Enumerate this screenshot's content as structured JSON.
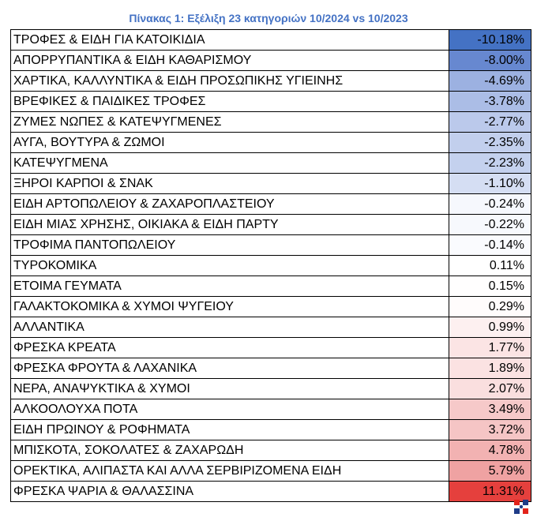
{
  "title": "Πίνακας 1: Εξέλιξη 23 κατηγοριών 10/2024 vs 10/2023",
  "rows": [
    {
      "category": "ΤΡΟΦΕΣ & ΕΙΔΗ ΓΙΑ ΚΑΤΟΙΚΙΔΙΑ",
      "change": "-10.18%",
      "color": "#4472c4"
    },
    {
      "category": "ΑΠΟΡΡΥΠΑΝΤΙΚΑ & ΕΙΔΗ ΚΑΘΑΡΙΣΜΟΥ",
      "change": "-8.00%",
      "color": "#6788d0"
    },
    {
      "category": "ΧΑΡΤΙΚΑ, ΚΑΛΛΥΝΤΙΚΑ & ΕΙΔΗ ΠΡΟΣΩΠΙΚΗΣ ΥΓΙΕΙΝΗΣ",
      "change": "-4.69%",
      "color": "#9cb1e1"
    },
    {
      "category": "ΒΡΕΦΙΚΕΣ & ΠΑΙΔΙΚΕΣ ΤΡΟΦΕΣ",
      "change": "-3.78%",
      "color": "#abbde6"
    },
    {
      "category": "ΖΥΜΕΣ ΝΩΠΕΣ & ΚΑΤΕΨΥΓΜΕΝΕΣ",
      "change": "-2.77%",
      "color": "#bbc9eb"
    },
    {
      "category": "ΑΥΓΑ, ΒΟΥΤΥΡΑ & ΖΩΜΟΙ",
      "change": "-2.35%",
      "color": "#c2cfed"
    },
    {
      "category": "ΚΑΤΕΨΥΓΜΕΝΑ",
      "change": "-2.23%",
      "color": "#c4d1ee"
    },
    {
      "category": "ΞΗΡΟΙ ΚΑΡΠΟΙ & ΣΝΑΚ",
      "change": "-1.10%",
      "color": "#d5def3"
    },
    {
      "category": "ΕΙΔΗ ΑΡΤΟΠΩΛΕΙΟΥ & ΖΑΧΑΡΟΠΛΑΣΤΕΙΟΥ",
      "change": "-0.24%",
      "color": "#f6f8fd"
    },
    {
      "category": "ΕΙΔΗ ΜΙΑΣ ΧΡΗΣΗΣ, ΟΙΚΙΑΚΑ & ΕΙΔΗ ΠΑΡΤΥ",
      "change": "-0.22%",
      "color": "#f7f9fd"
    },
    {
      "category": "ΤΡΟΦΙΜΑ ΠΑΝΤΟΠΩΛΕΙΟΥ",
      "change": "-0.14%",
      "color": "#fafbfe"
    },
    {
      "category": "ΤΥΡΟΚΟΜΙΚΑ",
      "change": "0.11%",
      "color": "#ffffff"
    },
    {
      "category": "ΕΤΟΙΜΑ ΓΕΥΜΑΤΑ",
      "change": "0.15%",
      "color": "#fffefe"
    },
    {
      "category": "ΓΑΛΑΚΤΟΚΟΜΙΚΑ & ΧΥΜΟΙ ΨΥΓΕΙΟΥ",
      "change": "0.29%",
      "color": "#fffcfc"
    },
    {
      "category": "ΑΛΛΑΝΤΙΚΑ",
      "change": "0.99%",
      "color": "#fdf0f0"
    },
    {
      "category": "ΦΡΕΣΚΑ ΚΡΕΑΤΑ",
      "change": "1.77%",
      "color": "#fbe4e4"
    },
    {
      "category": "ΦΡΕΣΚΑ ΦΡΟΥΤΑ & ΛΑΧΑΝΙΚΑ",
      "change": "1.89%",
      "color": "#fbe2e2"
    },
    {
      "category": "ΝΕΡΑ, ΑΝΑΨΥΚΤΙΚΑ & ΧΥΜΟΙ",
      "change": "2.07%",
      "color": "#fadfdf"
    },
    {
      "category": "ΑΛΚΟΟΛΟΥΧΑ ΠΟΤΑ",
      "change": "3.49%",
      "color": "#f6c9c9"
    },
    {
      "category": "ΕΙΔΗ ΠΡΩΙΝΟΥ & ΡΟΦΗΜΑΤΑ",
      "change": "3.72%",
      "color": "#f5c5c5"
    },
    {
      "category": "ΜΠΙΣΚΟΤΑ, ΣΟΚΟΛΑΤΕΣ & ΖΑΧΑΡΩΔΗ",
      "change": "4.78%",
      "color": "#f2b2b2"
    },
    {
      "category": "ΟΡΕΚΤΙΚΑ, ΑΛΙΠΑΣΤΑ ΚΑΙ ΑΛΛΑ ΣΕΡΒΙΡΙΖΟΜΕΝΑ ΕΙΔΗ",
      "change": "5.79%",
      "color": "#efa2a2"
    },
    {
      "category": "ΦΡΕΣΚΑ ΨΑΡΙΑ & ΘΑΛΑΣΣΙΝΑ",
      "change": "11.31%",
      "color": "#e5403d"
    }
  ],
  "logo": {
    "icon": "publisher-logo-icon",
    "colors": [
      "#e2231a",
      "#1f3c88"
    ]
  }
}
